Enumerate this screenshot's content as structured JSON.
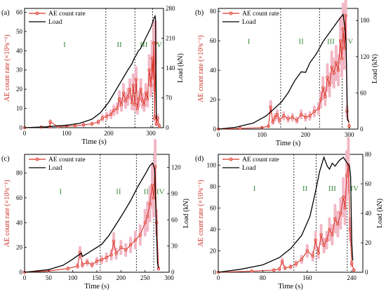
{
  "figure": {
    "panels_label": [
      "(a)",
      "(b)",
      "(c)",
      "(d)"
    ]
  },
  "colors": {
    "ae": "#d9352a",
    "ae_band": "#f2b8c6",
    "load": "#000000",
    "stage_text": "#3a8a3a",
    "axis": "#000000",
    "ylabel_left": "#cc2b22",
    "ylabel_right": "#000000"
  },
  "chart_data": [
    {
      "type": "line",
      "panel": "(a)",
      "xlabel": "Time (s)",
      "ylabel_left": "AE count rate (×10³s⁻¹)",
      "ylabel_right": "Load (kN)",
      "xlim": [
        0,
        330
      ],
      "ylim_left": [
        0,
        62
      ],
      "ylim_right": [
        0,
        280
      ],
      "xticks": [
        0,
        100,
        200,
        300
      ],
      "yticks_left": [
        0,
        10,
        20,
        30,
        40,
        50,
        60
      ],
      "yticks_right": [
        0,
        70,
        140,
        210,
        280
      ],
      "legend": [
        "AE count rate",
        "Load"
      ],
      "stage_lines": [
        193,
        262,
        304
      ],
      "stages": [
        {
          "label": "I",
          "x": 95,
          "y": 42
        },
        {
          "label": "II",
          "x": 225,
          "y": 42
        },
        {
          "label": "III",
          "x": 283,
          "y": 42
        },
        {
          "label": "IV",
          "x": 317,
          "y": 42
        }
      ],
      "series": [
        {
          "name": "AE count rate",
          "x": [
            0,
            40,
            60,
            61,
            80,
            100,
            120,
            140,
            160,
            175,
            185,
            195,
            205,
            212,
            220,
            225,
            230,
            235,
            240,
            245,
            250,
            255,
            258,
            262,
            265,
            268,
            272,
            276,
            280,
            284,
            288,
            292,
            296,
            300,
            303,
            305,
            307,
            309,
            311,
            313,
            316,
            320
          ],
          "y": [
            0,
            0.3,
            0.4,
            3,
            0.5,
            0.8,
            1,
            1.5,
            2,
            3,
            5,
            6,
            7,
            9,
            10,
            15,
            12,
            18,
            14,
            16,
            20,
            13,
            22,
            12,
            25,
            10,
            15,
            20,
            14,
            12,
            18,
            15,
            30,
            22,
            36,
            26,
            44,
            5,
            44,
            2,
            5,
            1
          ]
        },
        {
          "name": "Load",
          "x": [
            0,
            50,
            100,
            130,
            160,
            180,
            200,
            215,
            230,
            245,
            255,
            260,
            265,
            270,
            275,
            280,
            285,
            290,
            295,
            300,
            305,
            308,
            310,
            311,
            312,
            313
          ],
          "y": [
            0,
            2,
            6,
            10,
            20,
            35,
            60,
            85,
            110,
            135,
            150,
            162,
            170,
            180,
            185,
            195,
            205,
            215,
            225,
            235,
            250,
            258,
            262,
            255,
            140,
            20
          ]
        }
      ]
    },
    {
      "type": "line",
      "panel": "(b)",
      "xlabel": "Time (s)",
      "ylabel_left": "AE count rate (×10³s⁻¹)",
      "ylabel_right": "Load (kN)",
      "xlim": [
        0,
        320
      ],
      "ylim_left": [
        0,
        82
      ],
      "ylim_right": [
        0,
        200
      ],
      "xticks": [
        0,
        100,
        200,
        300
      ],
      "yticks_left": [
        0,
        20,
        40,
        60,
        80
      ],
      "yticks_right": [
        0,
        60,
        120,
        180
      ],
      "legend": [
        "AE count rate",
        "Load"
      ],
      "stage_lines": [
        143,
        232,
        284
      ],
      "stages": [
        {
          "label": "I",
          "x": 70,
          "y": 58
        },
        {
          "label": "II",
          "x": 190,
          "y": 58
        },
        {
          "label": "III",
          "x": 258,
          "y": 58
        },
        {
          "label": "IV",
          "x": 300,
          "y": 58
        }
      ],
      "series": [
        {
          "name": "AE count rate",
          "x": [
            0,
            50,
            100,
            115,
            120,
            125,
            130,
            135,
            140,
            150,
            160,
            170,
            180,
            190,
            200,
            210,
            220,
            230,
            235,
            240,
            245,
            250,
            255,
            260,
            265,
            270,
            275,
            280,
            283,
            286,
            289,
            292,
            295,
            300
          ],
          "y": [
            0,
            0.5,
            1,
            2,
            15,
            5,
            8,
            10,
            6,
            9,
            7,
            8,
            6,
            10,
            8,
            9,
            12,
            14,
            20,
            28,
            22,
            35,
            30,
            42,
            38,
            45,
            40,
            60,
            48,
            68,
            55,
            77,
            12,
            2
          ]
        },
        {
          "name": "Load",
          "x": [
            0,
            40,
            80,
            110,
            130,
            145,
            160,
            175,
            190,
            200,
            210,
            225,
            240,
            255,
            270,
            280,
            286,
            290,
            293,
            296,
            300
          ],
          "y": [
            0,
            3,
            10,
            22,
            35,
            45,
            60,
            80,
            95,
            94,
            110,
            125,
            145,
            160,
            175,
            185,
            190,
            170,
            140,
            15,
            12
          ]
        }
      ]
    },
    {
      "type": "line",
      "panel": "(c)",
      "xlabel": "Time (s)",
      "ylabel_left": "AE count rate (×10³s⁻¹)",
      "ylabel_right": "Load (kN)",
      "xlim": [
        0,
        300
      ],
      "ylim_left": [
        0,
        95
      ],
      "ylim_right": [
        0,
        135
      ],
      "xticks": [
        0,
        50,
        100,
        150,
        200,
        250,
        300
      ],
      "yticks_left": [
        0,
        20,
        40,
        60,
        80
      ],
      "yticks_right": [
        0,
        30,
        60,
        90,
        120
      ],
      "legend": [
        "AE count rate",
        "Load"
      ],
      "stage_lines": [
        157,
        232,
        268
      ],
      "stages": [
        {
          "label": "I",
          "x": 75,
          "y": 63
        },
        {
          "label": "II",
          "x": 195,
          "y": 63
        },
        {
          "label": "III",
          "x": 255,
          "y": 63
        },
        {
          "label": "IV",
          "x": 282,
          "y": 63
        }
      ],
      "series": [
        {
          "name": "AE count rate",
          "x": [
            0,
            50,
            90,
            110,
            115,
            120,
            130,
            140,
            150,
            160,
            170,
            180,
            185,
            190,
            200,
            210,
            220,
            230,
            240,
            250,
            255,
            260,
            265,
            268,
            271,
            274,
            278
          ],
          "y": [
            0,
            1,
            3,
            5,
            16,
            6,
            8,
            6,
            9,
            10,
            12,
            14,
            25,
            15,
            20,
            18,
            22,
            26,
            30,
            40,
            45,
            55,
            70,
            60,
            85,
            40,
            3
          ]
        },
        {
          "name": "Load",
          "x": [
            0,
            50,
            80,
            100,
            118,
            120,
            140,
            160,
            175,
            190,
            205,
            220,
            235,
            250,
            260,
            266,
            270,
            273,
            276,
            278
          ],
          "y": [
            0,
            3,
            8,
            15,
            22,
            18,
            25,
            32,
            42,
            55,
            68,
            82,
            98,
            112,
            122,
            125,
            118,
            60,
            10,
            5
          ]
        }
      ]
    },
    {
      "type": "line",
      "panel": "(d)",
      "xlabel": "Time (s)",
      "ylabel_left": "AE count rate (×10³s⁻¹)",
      "ylabel_right": "Load (kN)",
      "xlim": [
        0,
        260
      ],
      "ylim_left": [
        0,
        110
      ],
      "ylim_right": [
        0,
        80
      ],
      "xticks": [
        0,
        80,
        160,
        240
      ],
      "yticks_left": [
        0,
        20,
        40,
        60,
        80,
        100
      ],
      "yticks_right": [
        0,
        20,
        40,
        60,
        80
      ],
      "legend": [
        "AE count rate",
        "Load"
      ],
      "stage_lines": [
        136,
        176,
        232
      ],
      "stages": [
        {
          "label": "I",
          "x": 65,
          "y": 76
        },
        {
          "label": "II",
          "x": 156,
          "y": 76
        },
        {
          "label": "III",
          "x": 205,
          "y": 76
        },
        {
          "label": "IV",
          "x": 245,
          "y": 76
        }
      ],
      "series": [
        {
          "name": "AE count rate",
          "x": [
            0,
            60,
            100,
            110,
            115,
            120,
            130,
            140,
            150,
            160,
            170,
            175,
            180,
            185,
            190,
            195,
            200,
            205,
            210,
            215,
            220,
            225,
            228,
            231,
            234,
            237,
            240,
            244
          ],
          "y": [
            0,
            1,
            2,
            3,
            10,
            4,
            5,
            8,
            12,
            20,
            15,
            30,
            18,
            35,
            25,
            30,
            40,
            35,
            50,
            45,
            55,
            70,
            60,
            90,
            100,
            40,
            8,
            2
          ]
        },
        {
          "name": "Load",
          "x": [
            0,
            40,
            80,
            110,
            130,
            150,
            165,
            175,
            182,
            190,
            196,
            200,
            205,
            210,
            218,
            225,
            232,
            236,
            238,
            240,
            242
          ],
          "y": [
            0,
            2,
            5,
            10,
            16,
            25,
            38,
            55,
            68,
            78,
            72,
            70,
            74,
            72,
            76,
            78,
            74,
            72,
            65,
            20,
            8
          ]
        }
      ]
    }
  ]
}
